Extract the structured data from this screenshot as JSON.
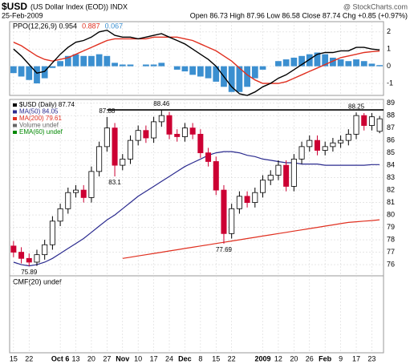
{
  "chart_data": {
    "type": "candlestick",
    "title": "$USD",
    "subtitle": "(US Dollar Index (EOD)) INDX",
    "source": "@ StockCharts.com",
    "date": "25-Feb-2009",
    "quote": "Open 86.73 High 87.96 Low 86.58 Close 87.74 Chg +0.85 (+0.97%)",
    "categories": [
      "15",
      null,
      "22",
      null,
      null,
      null,
      "Oct 6",
      null,
      "13",
      null,
      "20",
      null,
      "27",
      null,
      "Nov",
      null,
      "10",
      null,
      "17",
      null,
      "24",
      null,
      "Dec",
      null,
      "8",
      null,
      "15",
      null,
      "22",
      null,
      null,
      null,
      "2009",
      null,
      "12",
      null,
      "20",
      null,
      "26",
      null,
      "Feb",
      null,
      "9",
      null,
      "17",
      null,
      "23",
      null
    ],
    "open": [
      77.5,
      77.0,
      76.5,
      76.2,
      76.8,
      77.6,
      79.5,
      80.5,
      81.8,
      82.0,
      81.4,
      83.5,
      85.5,
      87.0,
      84.0,
      84.5,
      86.0,
      86.8,
      86.2,
      87.5,
      88.0,
      86.5,
      86.3,
      87.0,
      86.5,
      85.0,
      84.3,
      82.0,
      78.5,
      80.5,
      81.5,
      81.0,
      81.8,
      82.8,
      83.2,
      84.0,
      82.3,
      84.5,
      85.5,
      86.0,
      85.2,
      85.5,
      85.8,
      86.0,
      86.5,
      88.0,
      87.2,
      86.73
    ],
    "high": [
      77.9,
      77.4,
      76.9,
      77.2,
      78.0,
      79.9,
      80.9,
      82.2,
      82.4,
      82.4,
      83.9,
      85.9,
      87.88,
      87.4,
      84.9,
      86.4,
      87.2,
      87.2,
      87.9,
      88.46,
      88.3,
      86.9,
      87.4,
      87.4,
      86.9,
      85.4,
      84.7,
      82.4,
      80.9,
      81.9,
      81.9,
      82.2,
      83.2,
      83.6,
      84.4,
      84.4,
      84.9,
      85.9,
      86.4,
      86.4,
      85.9,
      86.2,
      86.4,
      86.9,
      88.25,
      88.2,
      88.2,
      87.96
    ],
    "low": [
      76.6,
      76.1,
      75.89,
      75.9,
      76.4,
      77.2,
      79.1,
      80.1,
      81.4,
      81.0,
      81.0,
      83.1,
      85.1,
      83.1,
      83.6,
      84.1,
      85.6,
      85.8,
      85.8,
      87.1,
      86.1,
      85.9,
      85.9,
      86.1,
      84.6,
      83.9,
      81.6,
      77.69,
      78.1,
      80.1,
      80.6,
      80.6,
      81.4,
      82.4,
      82.8,
      81.9,
      81.9,
      84.1,
      85.1,
      84.8,
      84.8,
      85.1,
      85.4,
      85.6,
      86.1,
      86.8,
      86.8,
      86.58
    ],
    "close": [
      77.0,
      76.5,
      76.2,
      76.8,
      77.6,
      79.5,
      80.5,
      81.8,
      82.0,
      81.4,
      83.5,
      85.5,
      87.0,
      84.0,
      84.5,
      86.0,
      86.8,
      86.2,
      87.5,
      88.0,
      86.5,
      86.3,
      87.0,
      86.5,
      85.0,
      84.3,
      82.0,
      78.5,
      80.5,
      81.5,
      81.0,
      81.8,
      82.8,
      83.2,
      84.0,
      82.3,
      84.5,
      85.5,
      86.0,
      85.2,
      85.5,
      85.8,
      86.0,
      86.5,
      88.0,
      87.2,
      87.9,
      87.74
    ],
    "annotated_highs": [
      12,
      19,
      44
    ],
    "annotated_lows": [
      2,
      13,
      27
    ],
    "up_color": "#ffffff",
    "down_color": "#cc0033",
    "ylim": [
      75.1,
      89.3
    ],
    "yticks": [
      76,
      77,
      78,
      79,
      80,
      81,
      82,
      83,
      84,
      85,
      86,
      87,
      88,
      89
    ],
    "grid": true,
    "series": [
      {
        "name": "MA(50) 84.05",
        "color": "#2b2b8f",
        "values": [
          76.2,
          76.0,
          75.9,
          76.0,
          76.2,
          76.5,
          76.9,
          77.3,
          77.7,
          78.1,
          78.6,
          79.1,
          79.6,
          80.0,
          80.5,
          81.0,
          81.5,
          81.9,
          82.3,
          82.7,
          83.1,
          83.5,
          83.9,
          84.2,
          84.5,
          84.8,
          85.0,
          85.1,
          85.1,
          85.0,
          84.8,
          84.7,
          84.5,
          84.4,
          84.3,
          84.2,
          84.2,
          84.1,
          84.1,
          84.1,
          84.0,
          84.0,
          84.0,
          84.0,
          84.0,
          84.0,
          84.05,
          84.05
        ]
      },
      {
        "name": "MA(200) 79.61",
        "color": "#e03020",
        "values": [
          null,
          null,
          null,
          null,
          null,
          null,
          null,
          null,
          null,
          null,
          null,
          null,
          null,
          null,
          76.5,
          76.6,
          76.7,
          76.8,
          76.9,
          77.0,
          77.1,
          77.2,
          77.3,
          77.4,
          77.5,
          77.6,
          77.7,
          77.8,
          77.9,
          78.0,
          78.1,
          78.2,
          78.3,
          78.4,
          78.5,
          78.6,
          78.7,
          78.8,
          78.9,
          79.0,
          79.1,
          79.2,
          79.3,
          79.4,
          79.45,
          79.5,
          79.55,
          79.61
        ]
      }
    ],
    "legend": [
      {
        "name": "$USD (Daily) 87.74",
        "color": "#000000"
      },
      {
        "name": "Volume undef",
        "color": "#666666"
      },
      {
        "name": "EMA(60) undef",
        "color": "#008800"
      }
    ],
    "ppo": {
      "ylim": [
        -1.7,
        2.6
      ],
      "yticks": [
        -1,
        0,
        1,
        2
      ],
      "series": [
        {
          "name": "PPO(12,26,9) 0.954",
          "color": "#000000",
          "values": [
            1.0,
            0.6,
            0.1,
            -0.4,
            -0.3,
            0.2,
            0.7,
            1.1,
            1.4,
            1.5,
            1.7,
            2.0,
            2.1,
            1.8,
            1.7,
            1.7,
            1.6,
            1.7,
            1.8,
            1.9,
            1.7,
            1.5,
            1.3,
            1.0,
            0.7,
            0.4,
            0.0,
            -0.6,
            -1.2,
            -1.6,
            -1.7,
            -1.5,
            -1.2,
            -1.0,
            -0.7,
            -0.5,
            -0.2,
            0.1,
            0.4,
            0.7,
            0.8,
            0.8,
            0.9,
            0.9,
            1.1,
            1.1,
            1.0,
            0.954
          ]
        },
        {
          "name": "0.887",
          "color": "#e03020",
          "values": [
            1.4,
            1.2,
            0.9,
            0.6,
            0.4,
            0.3,
            0.4,
            0.5,
            0.7,
            0.9,
            1.1,
            1.3,
            1.5,
            1.6,
            1.6,
            1.6,
            1.6,
            1.6,
            1.7,
            1.7,
            1.7,
            1.7,
            1.6,
            1.5,
            1.3,
            1.1,
            0.9,
            0.6,
            0.3,
            -0.1,
            -0.5,
            -0.8,
            -1.0,
            -1.0,
            -1.0,
            -0.9,
            -0.7,
            -0.5,
            -0.3,
            -0.1,
            0.1,
            0.3,
            0.5,
            0.6,
            0.7,
            0.8,
            0.85,
            0.887
          ]
        },
        {
          "name": "0.067",
          "color": "#3b8fd0",
          "values": [
            -0.4,
            -0.6,
            -0.8,
            -1.0,
            -0.7,
            -0.1,
            0.3,
            0.6,
            0.7,
            0.6,
            0.6,
            0.7,
            0.6,
            0.2,
            0.1,
            0.1,
            0.0,
            0.1,
            0.1,
            0.2,
            0.0,
            -0.2,
            -0.3,
            -0.5,
            -0.6,
            -0.7,
            -0.9,
            -1.2,
            -1.5,
            -1.5,
            -1.2,
            -0.7,
            -0.2,
            0.0,
            0.3,
            0.4,
            0.5,
            0.6,
            0.7,
            0.8,
            0.7,
            0.5,
            0.4,
            0.3,
            0.4,
            0.3,
            0.15,
            0.067
          ]
        }
      ]
    },
    "cmf_label": "CMF(20) undef"
  }
}
